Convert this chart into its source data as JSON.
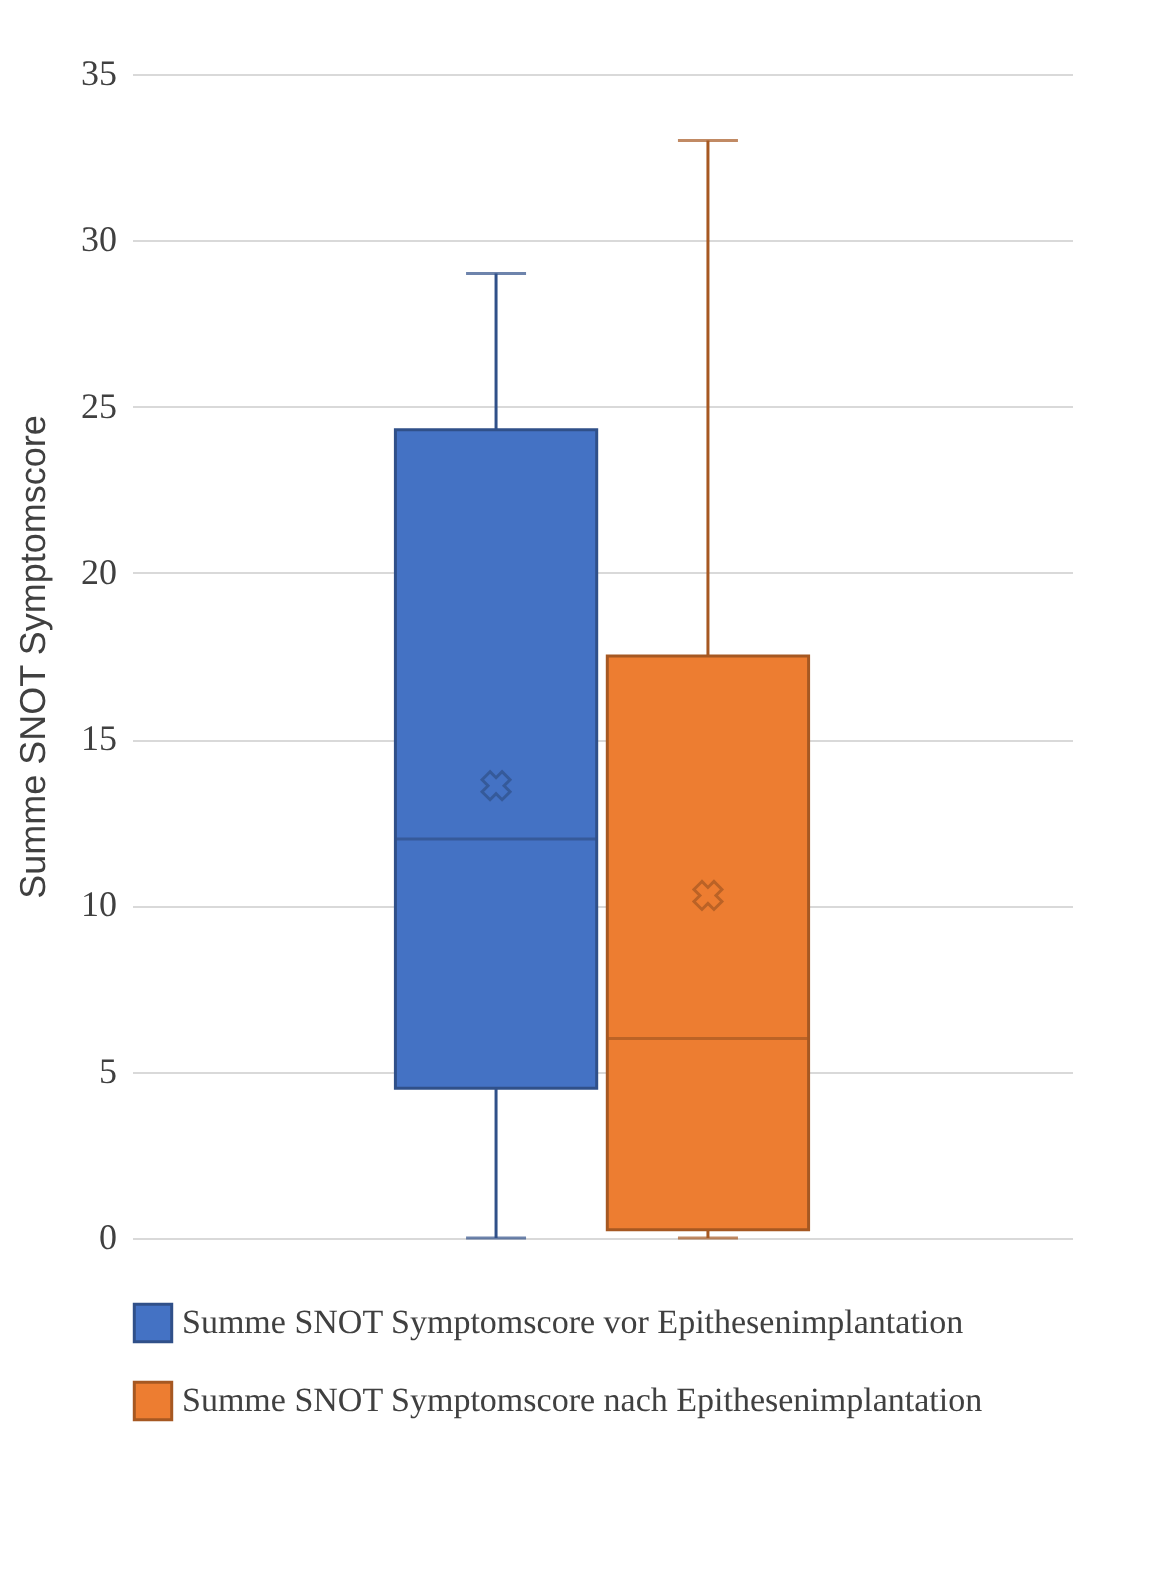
{
  "chart_data": {
    "type": "box",
    "ylabel": "Summe SNOT Symptomscore",
    "categories": [
      null
    ],
    "ylim": [
      0,
      35
    ],
    "yticks": [
      0,
      5,
      10,
      15,
      20,
      25,
      30,
      35
    ],
    "grid": "y",
    "legend": "bottom",
    "series": [
      {
        "name": "Summe SNOT Symptomscore vor Epithesenimplantation",
        "color": "#4472c4",
        "boxes": [
          {
            "low": 0,
            "q1": 4.5,
            "median": 12,
            "q3": 24.3,
            "high": 29,
            "mean": 13.6
          }
        ]
      },
      {
        "name": "Summe SNOT Symptomscore nach Epithesenimplantation",
        "color": "#ed7d31",
        "boxes": [
          {
            "low": 0,
            "q1": 0.25,
            "median": 6,
            "q3": 17.5,
            "high": 33,
            "mean": 10.3
          }
        ]
      }
    ]
  }
}
